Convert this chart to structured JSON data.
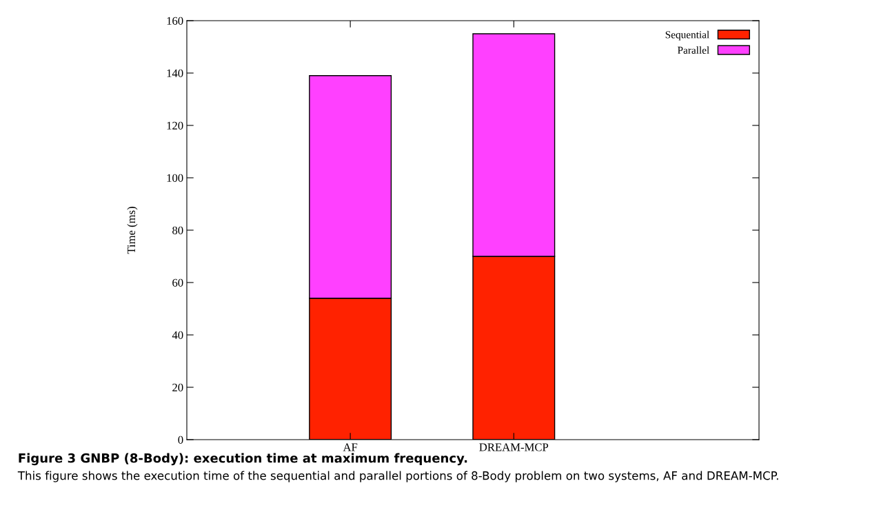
{
  "chart_data": {
    "type": "bar",
    "stacked": true,
    "title": "Figure 3 GNBP (8-Body): execution time at maximum frequency.",
    "annotations": [
      "This figure shows the execution time of the sequential and parallel portions of 8-Body problem on two systems, AF and DREAM-MCP."
    ],
    "ylabel": "Time (ms)",
    "categories": [
      "AF",
      "DREAM-MCP"
    ],
    "series": [
      {
        "name": "Sequential",
        "color": "#ff2200",
        "values": [
          54,
          70
        ]
      },
      {
        "name": "Parallel",
        "color": "#ff40ff",
        "values": [
          85,
          85
        ]
      }
    ],
    "ylim": [
      0,
      160
    ],
    "yticks": [
      0,
      20,
      40,
      60,
      80,
      100,
      120,
      140,
      160
    ],
    "legend": "top right",
    "grid": false
  }
}
